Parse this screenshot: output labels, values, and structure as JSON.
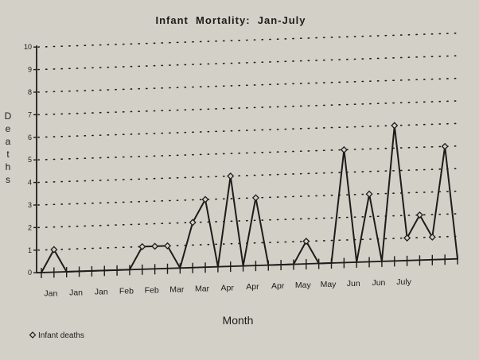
{
  "chart_data": {
    "type": "line",
    "title": "Infant  Mortality:  Jan-July",
    "xlabel": "Month",
    "ylabel": "Deaths",
    "ylim": [
      0,
      10
    ],
    "yticks": [
      "0",
      "1",
      "2",
      "3",
      "4",
      "5",
      "6",
      "7",
      "8",
      "9",
      "10"
    ],
    "x_tick_labels": [
      "Jan",
      "Jan",
      "Jan",
      "Feb",
      "Feb",
      "Mar",
      "Mar",
      "Apr",
      "Apr",
      "Apr",
      "May",
      "May",
      "Jun",
      "Jun",
      "July"
    ],
    "grid": "dotted horizontal",
    "legend_position": "bottom-left",
    "series": [
      {
        "name": "Infant deaths",
        "color": "#1e1c1a",
        "marker": "diamond",
        "values": [
          0,
          1,
          0,
          0,
          0,
          0,
          0,
          0,
          1,
          1,
          1,
          0,
          2,
          3,
          0,
          4,
          0,
          3,
          0,
          0,
          0,
          1,
          0,
          0,
          5,
          0,
          3,
          0,
          6,
          1,
          2,
          1,
          5,
          0
        ]
      }
    ]
  }
}
